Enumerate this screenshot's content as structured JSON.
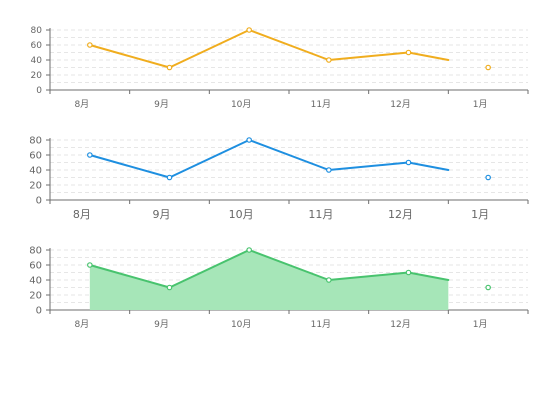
{
  "chart_data": [
    {
      "type": "line",
      "categories": [
        "8月",
        "9月",
        "10月",
        "11月",
        "12月",
        "1月"
      ],
      "series": [
        {
          "values": [
            60,
            30,
            80,
            40,
            50,
            40
          ],
          "color": "#f0ad1e"
        },
        {
          "values": [
            null,
            null,
            null,
            null,
            null,
            30
          ],
          "color": "#f0ad1e",
          "points_only": true
        }
      ],
      "y_ticks": [
        0,
        20,
        40,
        60,
        80
      ],
      "ylim": [
        0,
        80
      ],
      "grid": true,
      "area": false
    },
    {
      "type": "line",
      "categories": [
        "8月",
        "9月",
        "10月",
        "11月",
        "12月",
        "1月"
      ],
      "series": [
        {
          "values": [
            60,
            30,
            80,
            40,
            50,
            40
          ],
          "color": "#1e8fe0"
        },
        {
          "values": [
            null,
            null,
            null,
            null,
            null,
            30
          ],
          "color": "#1e8fe0",
          "points_only": true
        }
      ],
      "y_ticks": [
        0,
        20,
        40,
        60,
        80
      ],
      "ylim": [
        0,
        80
      ],
      "grid": true,
      "area": false
    },
    {
      "type": "area",
      "categories": [
        "8月",
        "9月",
        "10月",
        "11月",
        "12月",
        "1月"
      ],
      "series": [
        {
          "values": [
            60,
            30,
            80,
            40,
            50,
            40
          ],
          "color": "#48c36e",
          "fill": "#a6e6b8"
        },
        {
          "values": [
            null,
            null,
            null,
            null,
            null,
            30
          ],
          "color": "#48c36e",
          "points_only": true
        }
      ],
      "y_ticks": [
        0,
        20,
        40,
        60,
        80
      ],
      "ylim": [
        0,
        80
      ],
      "grid": true,
      "area": true
    }
  ]
}
